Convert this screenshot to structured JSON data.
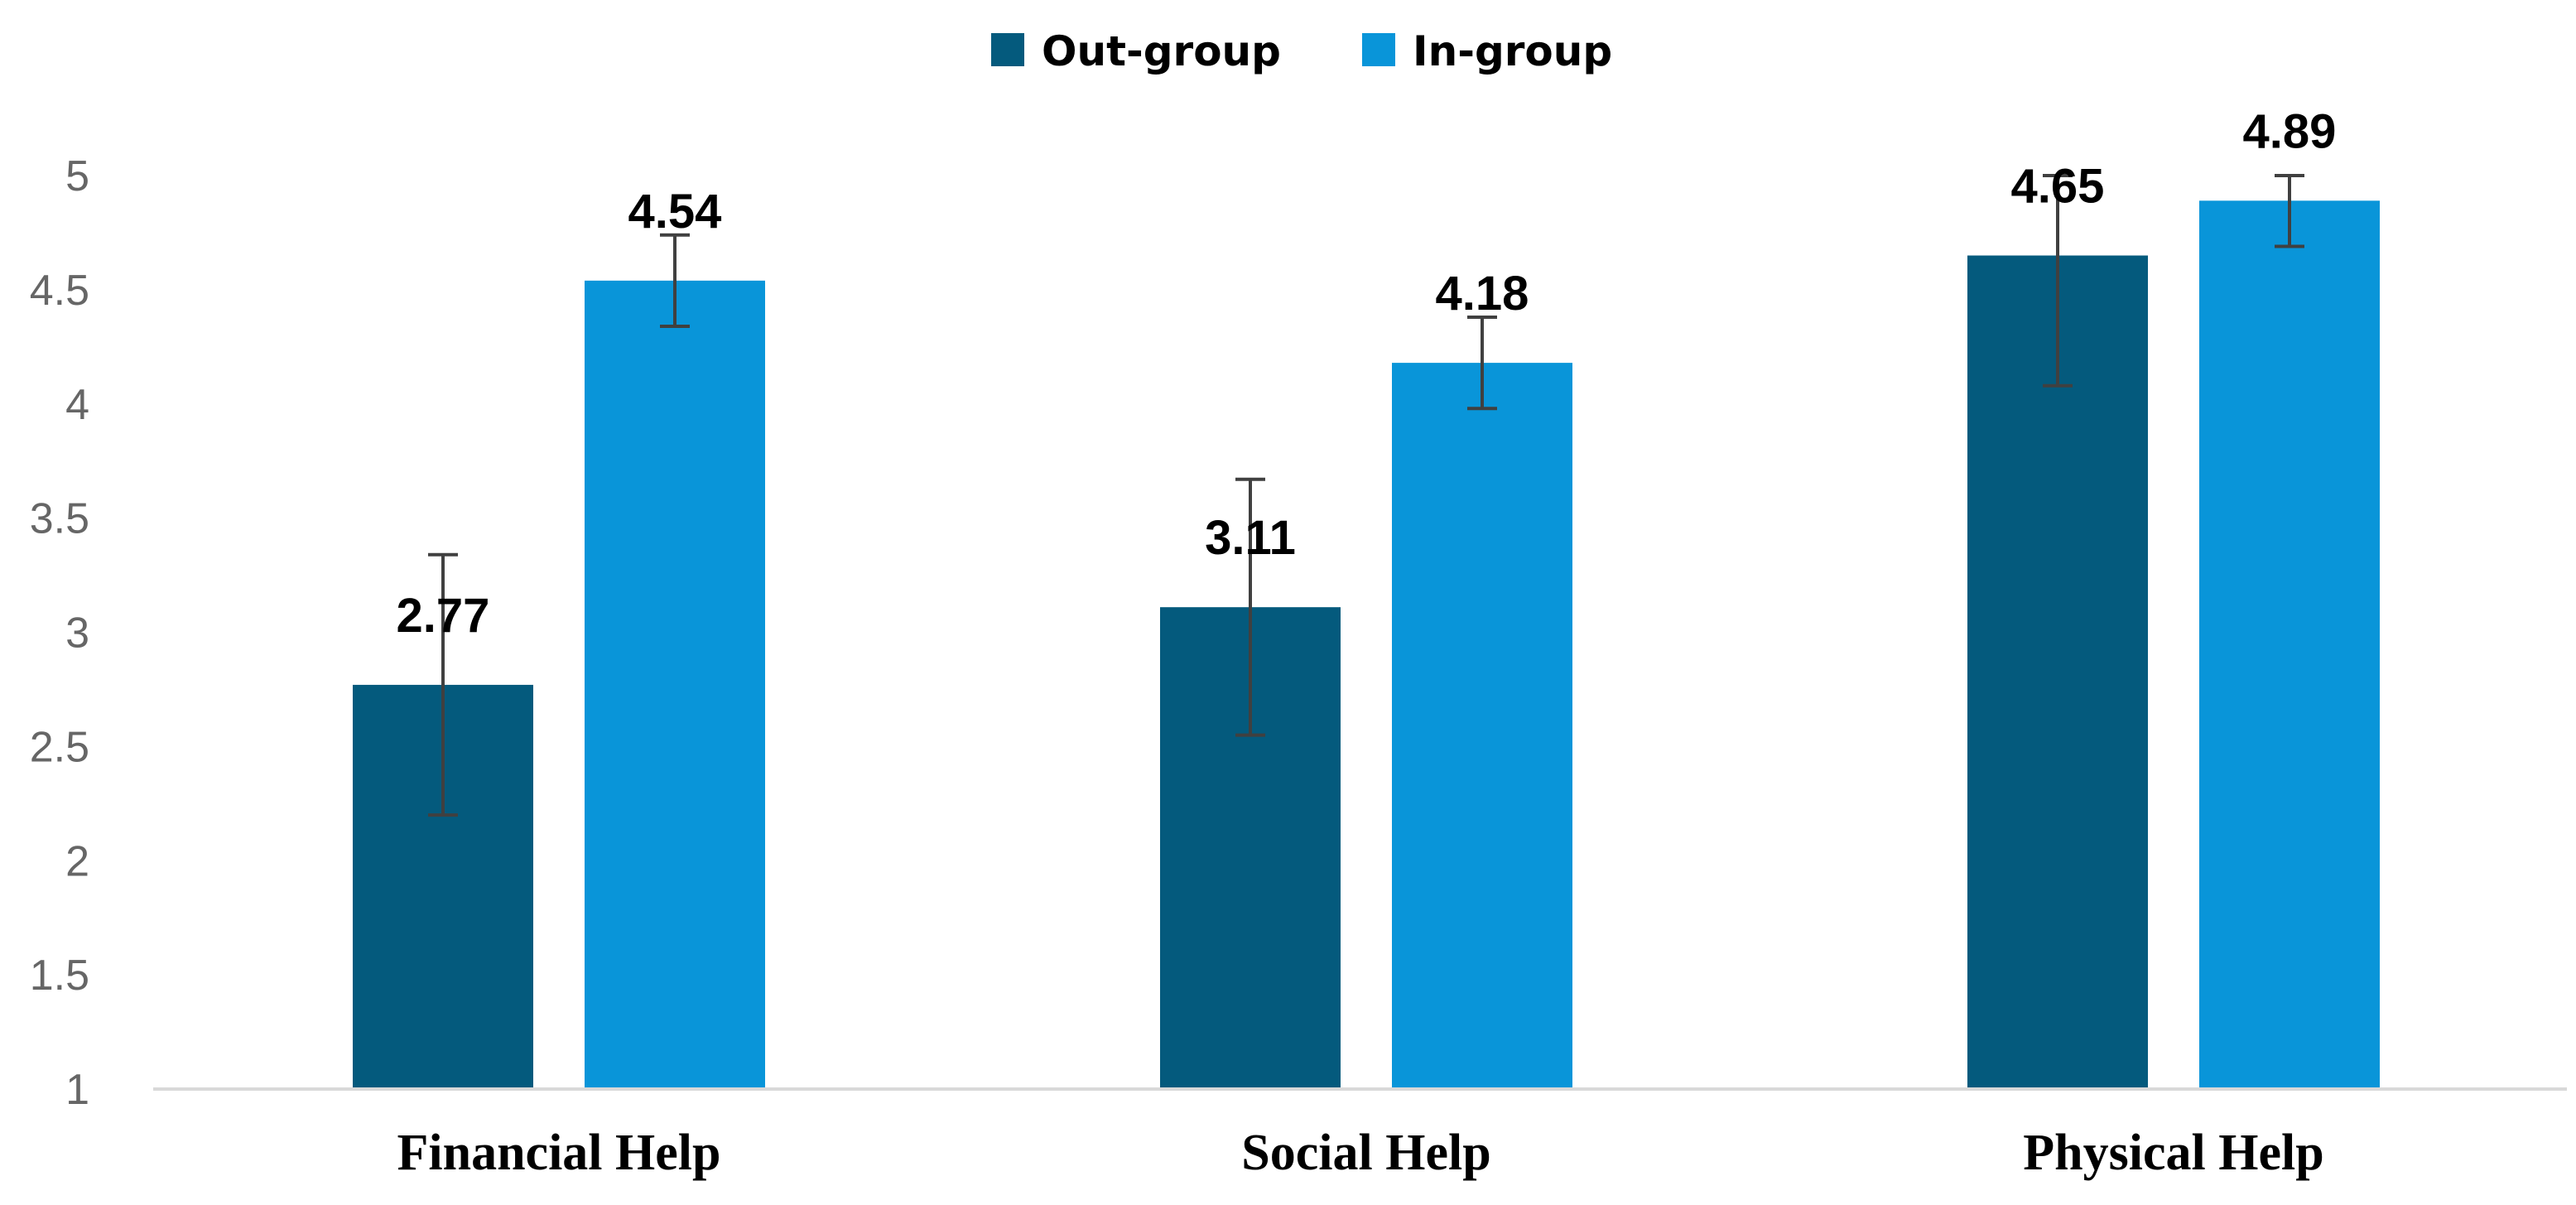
{
  "chart_data": {
    "type": "bar",
    "title": "",
    "xlabel": "",
    "ylabel": "",
    "categories": [
      "Financial Help",
      "Social Help",
      "Physical Help"
    ],
    "series": [
      {
        "name": "Out-group",
        "color": "#045a7d",
        "values": [
          2.77,
          3.11,
          4.65
        ],
        "labels": [
          "2.77",
          "3.11",
          "4.65"
        ],
        "error_low": [
          2.2,
          2.55,
          4.08
        ],
        "error_high": [
          3.34,
          3.67,
          5.0
        ]
      },
      {
        "name": "In-group",
        "color": "#0995d9",
        "values": [
          4.54,
          4.18,
          4.89
        ],
        "labels": [
          "4.54",
          "4.18",
          "4.89"
        ],
        "error_low": [
          4.34,
          3.98,
          4.69
        ],
        "error_high": [
          4.74,
          4.38,
          5.0
        ]
      }
    ],
    "ylim": [
      1,
      5
    ],
    "yticks": [
      "1",
      "1.5",
      "2",
      "2.5",
      "3",
      "3.5",
      "4",
      "4.5",
      "5"
    ],
    "ytick_values": [
      1,
      1.5,
      2,
      2.5,
      3,
      3.5,
      4,
      4.5,
      5
    ],
    "grid": false,
    "legend": "top-center",
    "axis_color": "#d9d9d9",
    "error_bar_color": "#404040"
  }
}
